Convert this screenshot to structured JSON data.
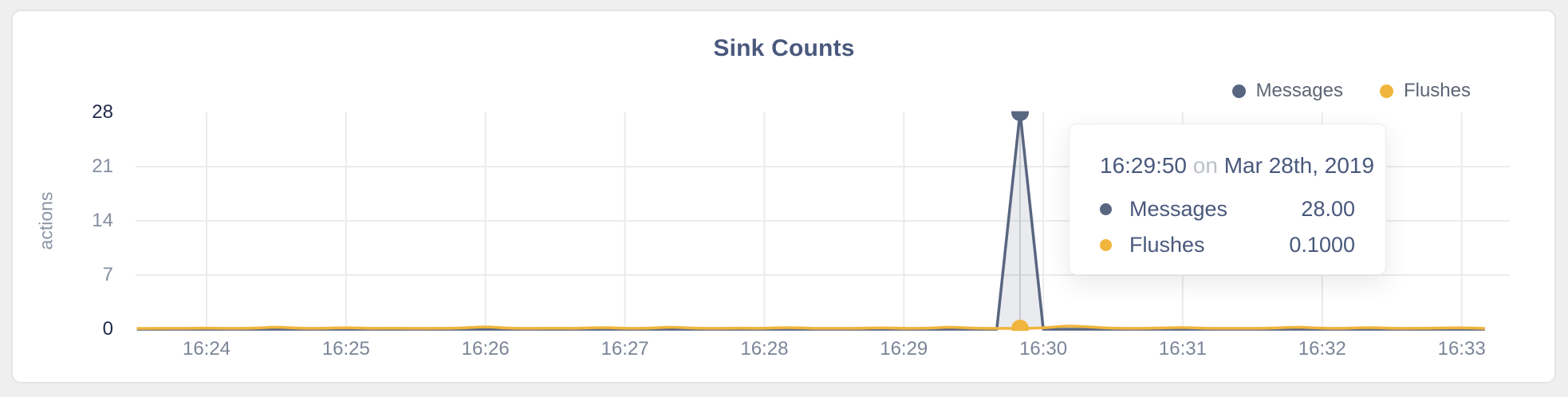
{
  "card": {},
  "chart": {
    "title": "Sink Counts",
    "y_axis_label": "actions",
    "colors": {
      "messages": "#596681",
      "flushes": "#f0b53c",
      "area_fill": "rgba(89,102,129,0.13)",
      "gridline": "#ebebeb",
      "crosshair": "#d8d8d8",
      "tick_normal": "#848e9f",
      "tick_emphasis": "#222c4c"
    },
    "legend": [
      {
        "label": "Messages",
        "color": "#596681"
      },
      {
        "label": "Flushes",
        "color": "#f0b53c"
      }
    ],
    "y_ticks": [
      {
        "label": "28",
        "value": 28,
        "emphasis": true
      },
      {
        "label": "21",
        "value": 21,
        "emphasis": false
      },
      {
        "label": "14",
        "value": 14,
        "emphasis": false
      },
      {
        "label": "7",
        "value": 7,
        "emphasis": false
      },
      {
        "label": "0",
        "value": 0,
        "emphasis": true
      }
    ],
    "x_ticks": [
      "16:24",
      "16:25",
      "16:26",
      "16:27",
      "16:28",
      "16:29",
      "16:30",
      "16:31",
      "16:32",
      "16:33"
    ]
  },
  "chart_data": {
    "type": "area",
    "title": "Sink Counts",
    "xlabel": "",
    "ylabel": "actions",
    "ylim": [
      0,
      28
    ],
    "x_start": "16:23:30",
    "x_step_seconds": 10,
    "x_minute_ticks": [
      "16:24",
      "16:25",
      "16:26",
      "16:27",
      "16:28",
      "16:29",
      "16:30",
      "16:31",
      "16:32",
      "16:33"
    ],
    "grid": true,
    "legend_position": "top-right",
    "series": [
      {
        "name": "Messages",
        "color": "#596681",
        "values": [
          0,
          0,
          0,
          0,
          0,
          0,
          0,
          0,
          0,
          0,
          0,
          0,
          0,
          0,
          0,
          0,
          0,
          0,
          0,
          0,
          0,
          0,
          0,
          0,
          0,
          0,
          0,
          0,
          0,
          0,
          0,
          0,
          0,
          0,
          0,
          0,
          0,
          0,
          28,
          0,
          0,
          0,
          0,
          0,
          0,
          0,
          0,
          0,
          0,
          0,
          0,
          0,
          0,
          0,
          0,
          0,
          0,
          0,
          0
        ]
      },
      {
        "name": "Flushes",
        "color": "#f0b53c",
        "values": [
          0.1,
          0.12,
          0.1,
          0.15,
          0.1,
          0.12,
          0.3,
          0.12,
          0.1,
          0.22,
          0.1,
          0.14,
          0.1,
          0.12,
          0.15,
          0.35,
          0.12,
          0.1,
          0.14,
          0.1,
          0.25,
          0.1,
          0.12,
          0.3,
          0.12,
          0.1,
          0.15,
          0.1,
          0.25,
          0.1,
          0.12,
          0.1,
          0.2,
          0.1,
          0.12,
          0.3,
          0.12,
          0.1,
          0.1,
          0.15,
          0.45,
          0.3,
          0.12,
          0.1,
          0.15,
          0.25,
          0.1,
          0.12,
          0.1,
          0.15,
          0.3,
          0.12,
          0.1,
          0.25,
          0.1,
          0.12,
          0.15,
          0.2,
          0.1
        ]
      }
    ],
    "hover_point": {
      "time": "16:29:50",
      "messages": 28,
      "flushes": 0.1
    }
  },
  "tooltip": {
    "time": "16:29:50",
    "on_word": "on",
    "date": "Mar 28th, 2019",
    "rows": [
      {
        "label": "Messages",
        "value": "28.00",
        "color": "#596681"
      },
      {
        "label": "Flushes",
        "value": "0.1000",
        "color": "#f0b53c"
      }
    ]
  }
}
